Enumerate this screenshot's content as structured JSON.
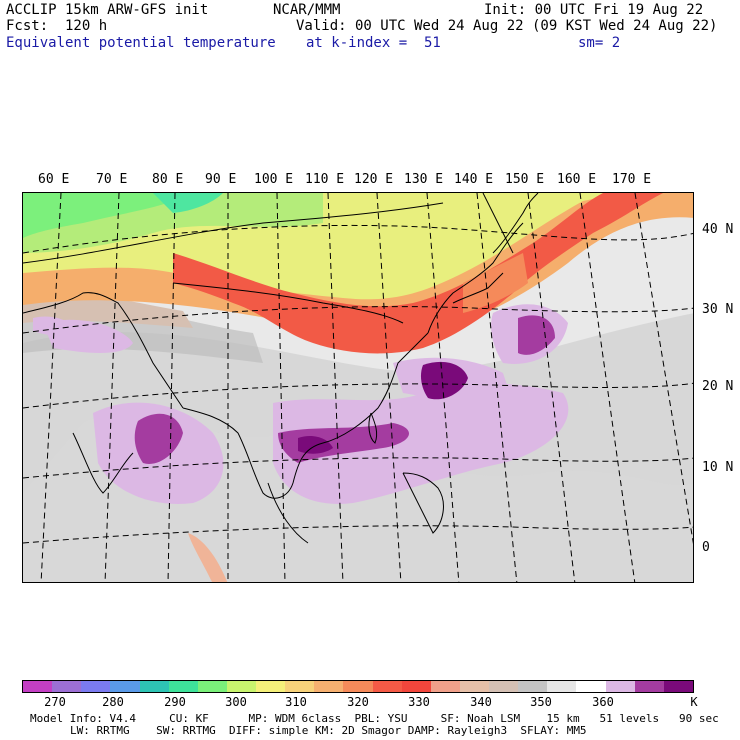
{
  "header": {
    "line1_left": "ACCLIP 15km ARW-GFS init",
    "line1_mid": "NCAR/MMM",
    "line1_right": "Init: 00 UTC Fri 19 Aug 22",
    "line2_left": "Fcst:  120 h",
    "line2_right": "Valid: 00 UTC Wed 24 Aug 22 (09 KST Wed 24 Aug 22)",
    "field": "Equivalent potential temperature",
    "level": "at k-index =  51",
    "smooth": "sm= 2"
  },
  "longitudes": [
    "60 E",
    "70 E",
    "80 E",
    "90 E",
    "100 E",
    "110 E",
    "120 E",
    "130 E",
    "140 E",
    "150 E",
    "160 E",
    "170 E"
  ],
  "latitudes": [
    "40 N",
    "30 N",
    "20 N",
    "10 N",
    "0"
  ],
  "colorbar": {
    "colors": [
      "#c43fc4",
      "#9c6fd4",
      "#7b7bf0",
      "#5a9ae8",
      "#2ec4b4",
      "#3ee29a",
      "#7af07a",
      "#c8f46e",
      "#f5f07a",
      "#f7d27a",
      "#f6b070",
      "#f58a5a",
      "#f55a46",
      "#f2463c",
      "#f0a08a",
      "#e6c0a8",
      "#d4c0b4",
      "#c4c4c4",
      "#e6e6e6",
      "#ffffff",
      "#dcb8e4",
      "#a43ca0",
      "#7a0a7a"
    ],
    "ticks": [
      "270",
      "280",
      "290",
      "300",
      "310",
      "320",
      "330",
      "340",
      "350",
      "360"
    ],
    "unit": "K"
  },
  "model_info": {
    "line1": "Model Info: V4.4     CU: KF      MP: WDM 6class  PBL: YSU     SF: Noah LSM    15 km   51 levels   90 sec",
    "line2": "LW: RRTMG    SW: RRTMG  DIFF: simple KM: 2D Smagor DAMP: Rayleigh3  SFLAY: MM5"
  }
}
